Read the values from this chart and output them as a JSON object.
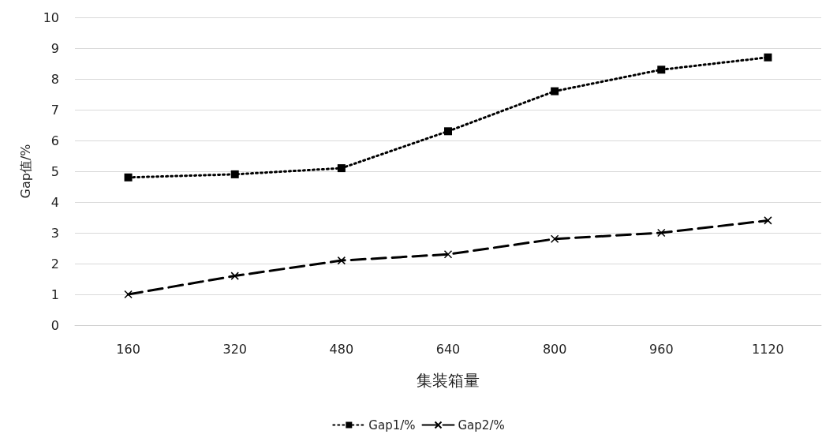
{
  "chart_data": {
    "type": "line",
    "xlabel": "集装箱量",
    "ylabel": "Gap值/%",
    "categories": [
      "160",
      "320",
      "480",
      "640",
      "800",
      "960",
      "1120"
    ],
    "series": [
      {
        "name": "Gap1/%",
        "color": "#000000",
        "marker": "square",
        "line_style": "dotted",
        "values": [
          4.8,
          4.9,
          5.1,
          6.3,
          7.6,
          8.3,
          8.7
        ]
      },
      {
        "name": "Gap2/%",
        "color": "#000000",
        "marker": "cross",
        "line_style": "dashed",
        "values": [
          1.0,
          1.6,
          2.1,
          2.3,
          2.8,
          3.0,
          3.4
        ]
      }
    ],
    "ylim": [
      0,
      10
    ],
    "yticks": [
      0,
      1,
      2,
      3,
      4,
      5,
      6,
      7,
      8,
      9,
      10
    ],
    "grid": "y",
    "legend": "bottom"
  }
}
